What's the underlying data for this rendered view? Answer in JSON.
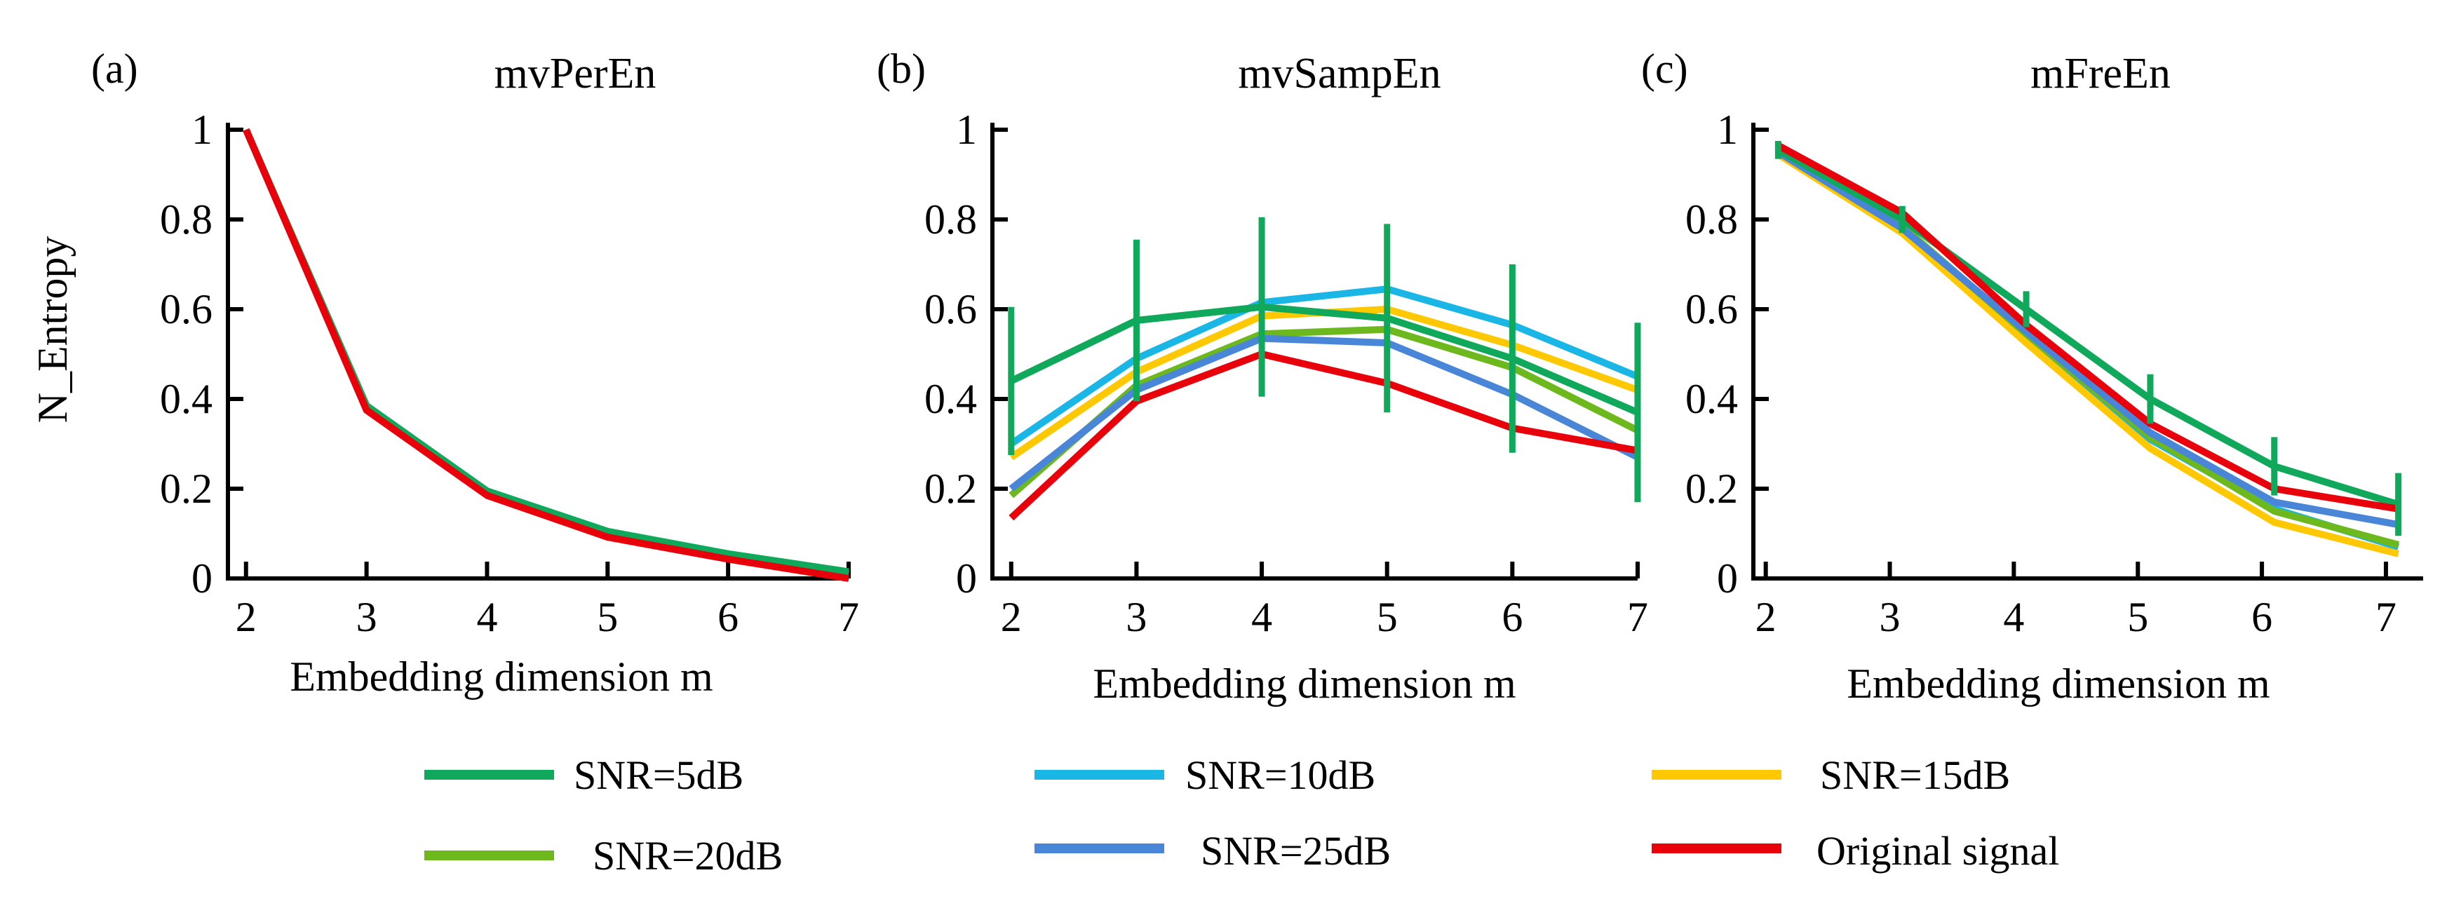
{
  "chart_data": [
    {
      "type": "line",
      "panel_label": "(a)",
      "title": "mvPerEn",
      "xlabel": "Embedding dimension m",
      "ylabel": "N_Entropy",
      "xlim": [
        1.85,
        7.0
      ],
      "ylim": [
        0,
        1
      ],
      "x_ticks": [
        2,
        3,
        4,
        5,
        6,
        7
      ],
      "y_ticks": [
        0,
        0.2,
        0.4,
        0.6,
        0.8,
        1
      ],
      "y_tick_labels": [
        "0",
        "0.2",
        "0.4",
        "0.6",
        "0.8",
        "1"
      ],
      "x": [
        2,
        3,
        4,
        5,
        6,
        7
      ],
      "series": [
        {
          "name": "SNR=5dB",
          "color": "#10a85a",
          "values": [
            1.0,
            0.385,
            0.195,
            0.105,
            0.055,
            0.015
          ],
          "errors": null
        },
        {
          "name": "SNR=10dB",
          "color": "#1ab6e6",
          "values": [
            1.0,
            0.38,
            0.19,
            0.1,
            0.05,
            0.01
          ],
          "errors": null
        },
        {
          "name": "SNR=15dB",
          "color": "#ffc800",
          "values": [
            1.0,
            0.38,
            0.19,
            0.1,
            0.05,
            0.01
          ],
          "errors": null
        },
        {
          "name": "SNR=20dB",
          "color": "#6cb81d",
          "values": [
            1.0,
            0.38,
            0.19,
            0.1,
            0.05,
            0.01
          ],
          "errors": null
        },
        {
          "name": "SNR=25dB",
          "color": "#4a86d8",
          "values": [
            1.0,
            0.38,
            0.19,
            0.1,
            0.05,
            0.01
          ],
          "errors": null
        },
        {
          "name": "Original signal",
          "color": "#e8000b",
          "values": [
            1.0,
            0.375,
            0.185,
            0.092,
            0.043,
            0.0
          ],
          "errors": null
        }
      ]
    },
    {
      "type": "line",
      "panel_label": "(b)",
      "title": "mvSampEn",
      "xlabel": "Embedding dimension m",
      "ylabel": "",
      "xlim": [
        1.85,
        7.0
      ],
      "ylim": [
        0,
        1
      ],
      "x_ticks": [
        2,
        3,
        4,
        5,
        6,
        7
      ],
      "y_ticks": [
        0,
        0.2,
        0.4,
        0.6,
        0.8,
        1
      ],
      "y_tick_labels": [
        "0",
        "0.2",
        "0.4",
        "0.6",
        "0.8",
        "1"
      ],
      "x": [
        2,
        3,
        4,
        5,
        6,
        7
      ],
      "series": [
        {
          "name": "SNR=5dB",
          "color": "#10a85a",
          "values": [
            0.44,
            0.575,
            0.605,
            0.58,
            0.49,
            0.37
          ],
          "errors": [
            0.165,
            0.18,
            0.2,
            0.21,
            0.21,
            0.2
          ]
        },
        {
          "name": "SNR=10dB",
          "color": "#1ab6e6",
          "values": [
            0.3,
            0.49,
            0.615,
            0.645,
            0.565,
            0.45
          ],
          "errors": null
        },
        {
          "name": "SNR=15dB",
          "color": "#ffc800",
          "values": [
            0.27,
            0.46,
            0.585,
            0.6,
            0.52,
            0.42
          ],
          "errors": null
        },
        {
          "name": "SNR=20dB",
          "color": "#6cb81d",
          "values": [
            0.185,
            0.43,
            0.545,
            0.555,
            0.47,
            0.33
          ],
          "errors": null
        },
        {
          "name": "SNR=25dB",
          "color": "#4a86d8",
          "values": [
            0.2,
            0.42,
            0.535,
            0.525,
            0.41,
            0.27
          ],
          "errors": null
        },
        {
          "name": "Original signal",
          "color": "#e8000b",
          "values": [
            0.135,
            0.395,
            0.5,
            0.435,
            0.335,
            0.285
          ],
          "errors": null
        }
      ]
    },
    {
      "type": "line",
      "panel_label": "(c)",
      "title": "mFreEn",
      "xlabel": "Embedding dimension m",
      "ylabel": "",
      "xlim": [
        1.9,
        7.3
      ],
      "ylim": [
        0,
        1
      ],
      "x_ticks": [
        2,
        3,
        4,
        5,
        6,
        7
      ],
      "y_ticks": [
        0,
        0.2,
        0.4,
        0.6,
        0.8,
        1
      ],
      "y_tick_labels": [
        "0",
        "0.2",
        "0.4",
        "0.6",
        "0.8",
        "1"
      ],
      "x": [
        2.1,
        3.1,
        4.1,
        5.1,
        6.1,
        7.1
      ],
      "series": [
        {
          "name": "SNR=5dB",
          "color": "#10a85a",
          "values": [
            0.955,
            0.8,
            0.6,
            0.4,
            0.25,
            0.165
          ],
          "errors": [
            0.02,
            0.03,
            0.04,
            0.055,
            0.065,
            0.07
          ]
        },
        {
          "name": "SNR=10dB",
          "color": "#1ab6e6",
          "values": [
            0.95,
            0.77,
            0.535,
            0.31,
            0.155,
            0.07
          ],
          "errors": null
        },
        {
          "name": "SNR=15dB",
          "color": "#ffc800",
          "values": [
            0.945,
            0.77,
            0.525,
            0.29,
            0.125,
            0.055
          ],
          "errors": null
        },
        {
          "name": "SNR=20dB",
          "color": "#6cb81d",
          "values": [
            0.95,
            0.785,
            0.545,
            0.315,
            0.15,
            0.075
          ],
          "errors": null
        },
        {
          "name": "SNR=25dB",
          "color": "#4a86d8",
          "values": [
            0.95,
            0.78,
            0.55,
            0.325,
            0.17,
            0.12
          ],
          "errors": null
        },
        {
          "name": "Original signal",
          "color": "#e8000b",
          "values": [
            0.965,
            0.815,
            0.565,
            0.345,
            0.2,
            0.155
          ],
          "errors": null
        }
      ]
    }
  ],
  "legend": [
    {
      "label": "SNR=5dB",
      "color": "#10a85a"
    },
    {
      "label": "SNR=10dB",
      "color": "#1ab6e6"
    },
    {
      "label": "SNR=15dB",
      "color": "#ffc800"
    },
    {
      "label": "SNR=20dB",
      "color": "#6cb81d"
    },
    {
      "label": "SNR=25dB",
      "color": "#4a86d8"
    },
    {
      "label": "Original signal",
      "color": "#e8000b"
    }
  ]
}
